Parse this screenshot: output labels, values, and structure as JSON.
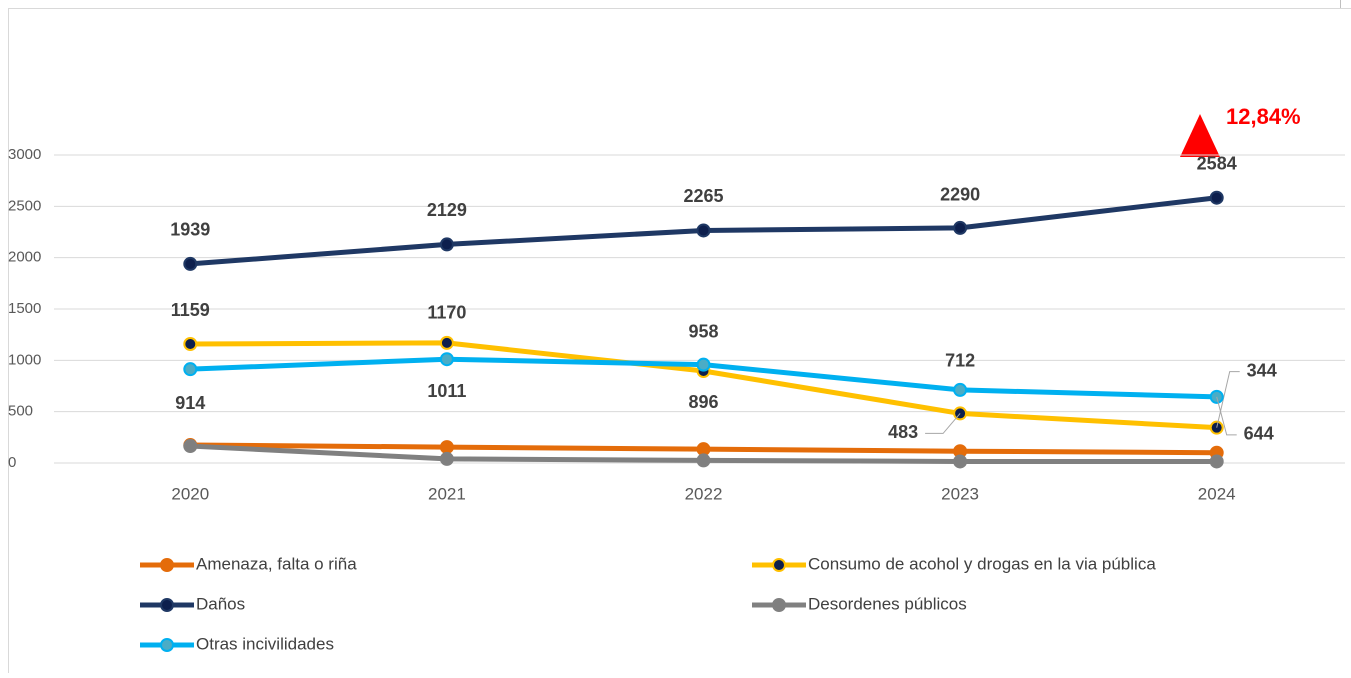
{
  "chart_data": {
    "type": "line",
    "categories": [
      "2020",
      "2021",
      "2022",
      "2023",
      "2024"
    ],
    "series": [
      {
        "name": "Amenaza, falta o riña",
        "color": "#e46c0a",
        "marker": "#e46c0a",
        "values": [
          175,
          155,
          135,
          115,
          100
        ]
      },
      {
        "name": "Consumo de acohol y drogas en la via pública",
        "color": "#ffc000",
        "marker": "#0d1f4d",
        "values": [
          1159,
          1170,
          896,
          483,
          344
        ]
      },
      {
        "name": "Daños",
        "color": "#1f3864",
        "marker": "#0d1f4d",
        "values": [
          1939,
          2129,
          2265,
          2290,
          2584
        ]
      },
      {
        "name": "Desordenes públicos",
        "color": "#808080",
        "marker": "#7f7f7f",
        "values": [
          165,
          40,
          25,
          15,
          15
        ]
      },
      {
        "name": "Otras incivilidades",
        "color": "#00b0f0",
        "marker": "#4bacc6",
        "values": [
          914,
          1011,
          958,
          712,
          644
        ]
      }
    ],
    "ylim": [
      0,
      3000
    ],
    "yticks": [
      0,
      500,
      1000,
      1500,
      2000,
      2500,
      3000
    ],
    "grid": true,
    "annotation": "12,84%"
  }
}
